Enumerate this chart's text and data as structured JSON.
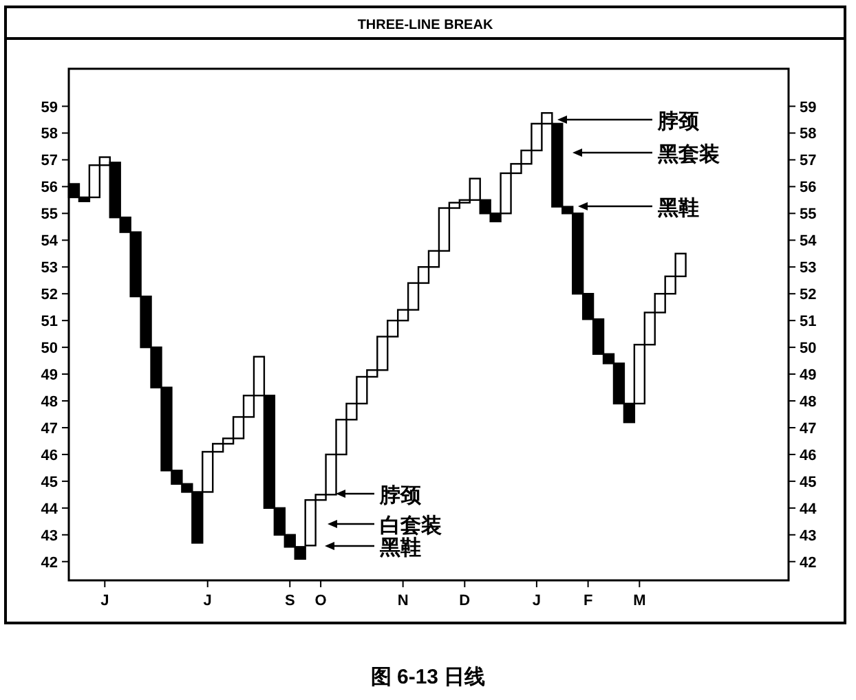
{
  "chart_data": {
    "type": "bar",
    "title": "THREE-LINE BREAK",
    "categories": [
      null,
      null,
      null,
      "J",
      null,
      null,
      null,
      null,
      null,
      null,
      null,
      null,
      null,
      "J",
      null,
      null,
      null,
      null,
      null,
      null,
      null,
      "S",
      null,
      null,
      "O",
      null,
      null,
      null,
      null,
      null,
      null,
      null,
      "N",
      null,
      null,
      null,
      null,
      null,
      "D",
      null,
      null,
      null,
      null,
      null,
      null,
      "J",
      null,
      null,
      null,
      null,
      "F",
      null,
      null,
      null,
      null,
      "M",
      null,
      null,
      null,
      null,
      null,
      null,
      null,
      null,
      null,
      null,
      null,
      null,
      null,
      null
    ],
    "base": [
      56.1,
      55.6,
      55.6,
      56.8,
      56.9,
      54.85,
      54.3,
      51.9,
      50.0,
      48.5,
      45.4,
      44.9,
      44.6,
      44.6,
      46.1,
      46.4,
      46.6,
      47.4,
      48.2,
      48.2,
      44.0,
      43.0,
      42.55,
      42.6,
      44.3,
      44.5,
      46.0,
      47.3,
      47.9,
      48.9,
      49.15,
      50.4,
      51.0,
      51.4,
      52.4,
      53.0,
      53.6,
      55.2,
      55.4,
      55.5,
      55.5,
      55.0,
      55.0,
      56.5,
      56.85,
      57.35,
      58.35,
      58.35,
      55.25,
      55.0,
      52.0,
      51.05,
      49.75,
      49.4,
      47.9,
      47.9,
      50.1,
      51.3,
      52.0,
      52.65,
      null,
      null,
      null,
      null,
      null,
      null,
      null,
      null,
      null,
      null
    ],
    "values": [
      -0.5,
      -0.15,
      1.2,
      0.3,
      -2.05,
      -0.55,
      -2.4,
      -1.9,
      -1.5,
      -3.1,
      -0.5,
      -0.3,
      -1.9,
      1.5,
      0.3,
      0.2,
      0.8,
      0.8,
      1.45,
      -4.2,
      -1.0,
      -0.45,
      -0.45,
      1.7,
      0.2,
      1.5,
      1.3,
      0.6,
      1.0,
      0.25,
      1.25,
      0.6,
      0.4,
      1.0,
      0.6,
      0.6,
      1.6,
      0.2,
      0.1,
      0.8,
      -0.5,
      -0.3,
      1.5,
      0.35,
      0.5,
      1.0,
      0.4,
      -3.1,
      -0.25,
      -3.0,
      -0.95,
      -1.3,
      -0.35,
      -1.5,
      -0.7,
      2.2,
      1.2,
      0.7,
      0.65,
      0.85,
      null,
      null,
      null,
      null,
      null,
      null,
      null,
      null,
      null,
      null
    ],
    "colors": [
      "#000000",
      "#000000",
      "#ffffff",
      "#ffffff",
      "#000000",
      "#000000",
      "#000000",
      "#000000",
      "#000000",
      "#000000",
      "#000000",
      "#000000",
      "#000000",
      "#ffffff",
      "#ffffff",
      "#ffffff",
      "#ffffff",
      "#ffffff",
      "#ffffff",
      "#000000",
      "#000000",
      "#000000",
      "#000000",
      "#ffffff",
      "#ffffff",
      "#ffffff",
      "#ffffff",
      "#ffffff",
      "#ffffff",
      "#ffffff",
      "#ffffff",
      "#ffffff",
      "#ffffff",
      "#ffffff",
      "#ffffff",
      "#ffffff",
      "#ffffff",
      "#ffffff",
      "#ffffff",
      "#ffffff",
      "#000000",
      "#000000",
      "#ffffff",
      "#ffffff",
      "#ffffff",
      "#ffffff",
      "#ffffff",
      "#000000",
      "#000000",
      "#000000",
      "#000000",
      "#000000",
      "#000000",
      "#000000",
      "#000000",
      "#ffffff",
      "#ffffff",
      "#ffffff",
      "#ffffff",
      "#ffffff",
      null,
      null,
      null,
      null,
      null,
      null,
      null,
      null,
      null,
      null
    ],
    "ylim": [
      41.3,
      60.4
    ],
    "yticks": [
      42,
      43,
      44,
      45,
      46,
      47,
      48,
      49,
      50,
      51,
      52,
      53,
      54,
      55,
      56,
      57,
      58,
      59
    ],
    "y2lim": [
      41.3,
      60.4
    ],
    "y2ticks": [
      42,
      43,
      44,
      45,
      46,
      47,
      48,
      49,
      50,
      51,
      52,
      53,
      54,
      55,
      56,
      57,
      58,
      59
    ],
    "grid": false,
    "annotations": [
      "脖颈",
      "白套装",
      "黑鞋",
      "脖颈",
      "黑套装",
      "黑鞋",
      "图 6-13 日线"
    ]
  }
}
